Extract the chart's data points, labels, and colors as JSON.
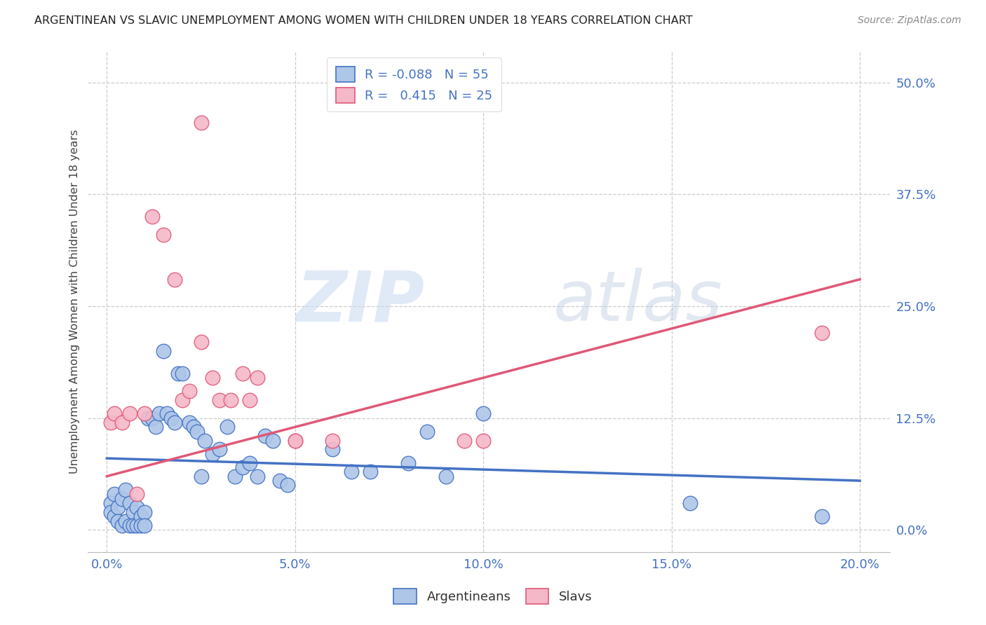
{
  "title": "ARGENTINEAN VS SLAVIC UNEMPLOYMENT AMONG WOMEN WITH CHILDREN UNDER 18 YEARS CORRELATION CHART",
  "source": "Source: ZipAtlas.com",
  "xlabel_ticks": [
    "0.0%",
    "5.0%",
    "10.0%",
    "15.0%",
    "20.0%"
  ],
  "xlabel_vals": [
    0.0,
    0.05,
    0.1,
    0.15,
    0.2
  ],
  "ylabel_ticks": [
    "0.0%",
    "12.5%",
    "25.0%",
    "37.5%",
    "50.0%"
  ],
  "ylabel_vals": [
    0.0,
    0.125,
    0.25,
    0.375,
    0.5
  ],
  "ylabel_label": "Unemployment Among Women with Children Under 18 years",
  "legend_labels": [
    "Argentineans",
    "Slavs"
  ],
  "blue_R": "-0.088",
  "blue_N": "55",
  "pink_R": "0.415",
  "pink_N": "25",
  "blue_color": "#aec6e8",
  "pink_color": "#f5b8c8",
  "blue_line_color": "#4472c4",
  "pink_line_color": "#e05878",
  "watermark_zip": "ZIP",
  "watermark_atlas": "atlas",
  "blue_scatter_x": [
    0.001,
    0.001,
    0.002,
    0.002,
    0.003,
    0.003,
    0.004,
    0.004,
    0.005,
    0.005,
    0.006,
    0.006,
    0.007,
    0.007,
    0.008,
    0.008,
    0.009,
    0.009,
    0.01,
    0.01,
    0.011,
    0.012,
    0.013,
    0.014,
    0.015,
    0.016,
    0.017,
    0.018,
    0.019,
    0.02,
    0.022,
    0.023,
    0.024,
    0.025,
    0.026,
    0.028,
    0.03,
    0.032,
    0.034,
    0.036,
    0.038,
    0.04,
    0.042,
    0.044,
    0.046,
    0.048,
    0.06,
    0.065,
    0.07,
    0.08,
    0.085,
    0.09,
    0.1,
    0.155,
    0.19
  ],
  "blue_scatter_y": [
    0.03,
    0.02,
    0.04,
    0.015,
    0.025,
    0.01,
    0.035,
    0.005,
    0.045,
    0.01,
    0.03,
    0.005,
    0.02,
    0.005,
    0.025,
    0.005,
    0.015,
    0.005,
    0.02,
    0.005,
    0.125,
    0.125,
    0.115,
    0.13,
    0.2,
    0.13,
    0.125,
    0.12,
    0.175,
    0.175,
    0.12,
    0.115,
    0.11,
    0.06,
    0.1,
    0.085,
    0.09,
    0.115,
    0.06,
    0.07,
    0.075,
    0.06,
    0.105,
    0.1,
    0.055,
    0.05,
    0.09,
    0.065,
    0.065,
    0.075,
    0.11,
    0.06,
    0.13,
    0.03,
    0.015
  ],
  "pink_scatter_x": [
    0.001,
    0.002,
    0.004,
    0.006,
    0.008,
    0.01,
    0.012,
    0.015,
    0.018,
    0.02,
    0.022,
    0.025,
    0.028,
    0.03,
    0.033,
    0.036,
    0.038,
    0.04,
    0.05,
    0.06,
    0.1,
    0.19,
    0.095,
    0.05,
    0.025
  ],
  "pink_scatter_y": [
    0.12,
    0.13,
    0.12,
    0.13,
    0.04,
    0.13,
    0.35,
    0.33,
    0.28,
    0.145,
    0.155,
    0.21,
    0.17,
    0.145,
    0.145,
    0.175,
    0.145,
    0.17,
    0.1,
    0.1,
    0.1,
    0.22,
    0.1,
    0.1,
    0.455
  ],
  "blue_line_x": [
    0.0,
    0.2
  ],
  "blue_line_y": [
    0.08,
    0.055
  ],
  "pink_line_x": [
    0.0,
    0.2
  ],
  "pink_line_y": [
    0.06,
    0.28
  ],
  "xlim": [
    -0.005,
    0.208
  ],
  "ylim": [
    -0.025,
    0.535
  ]
}
